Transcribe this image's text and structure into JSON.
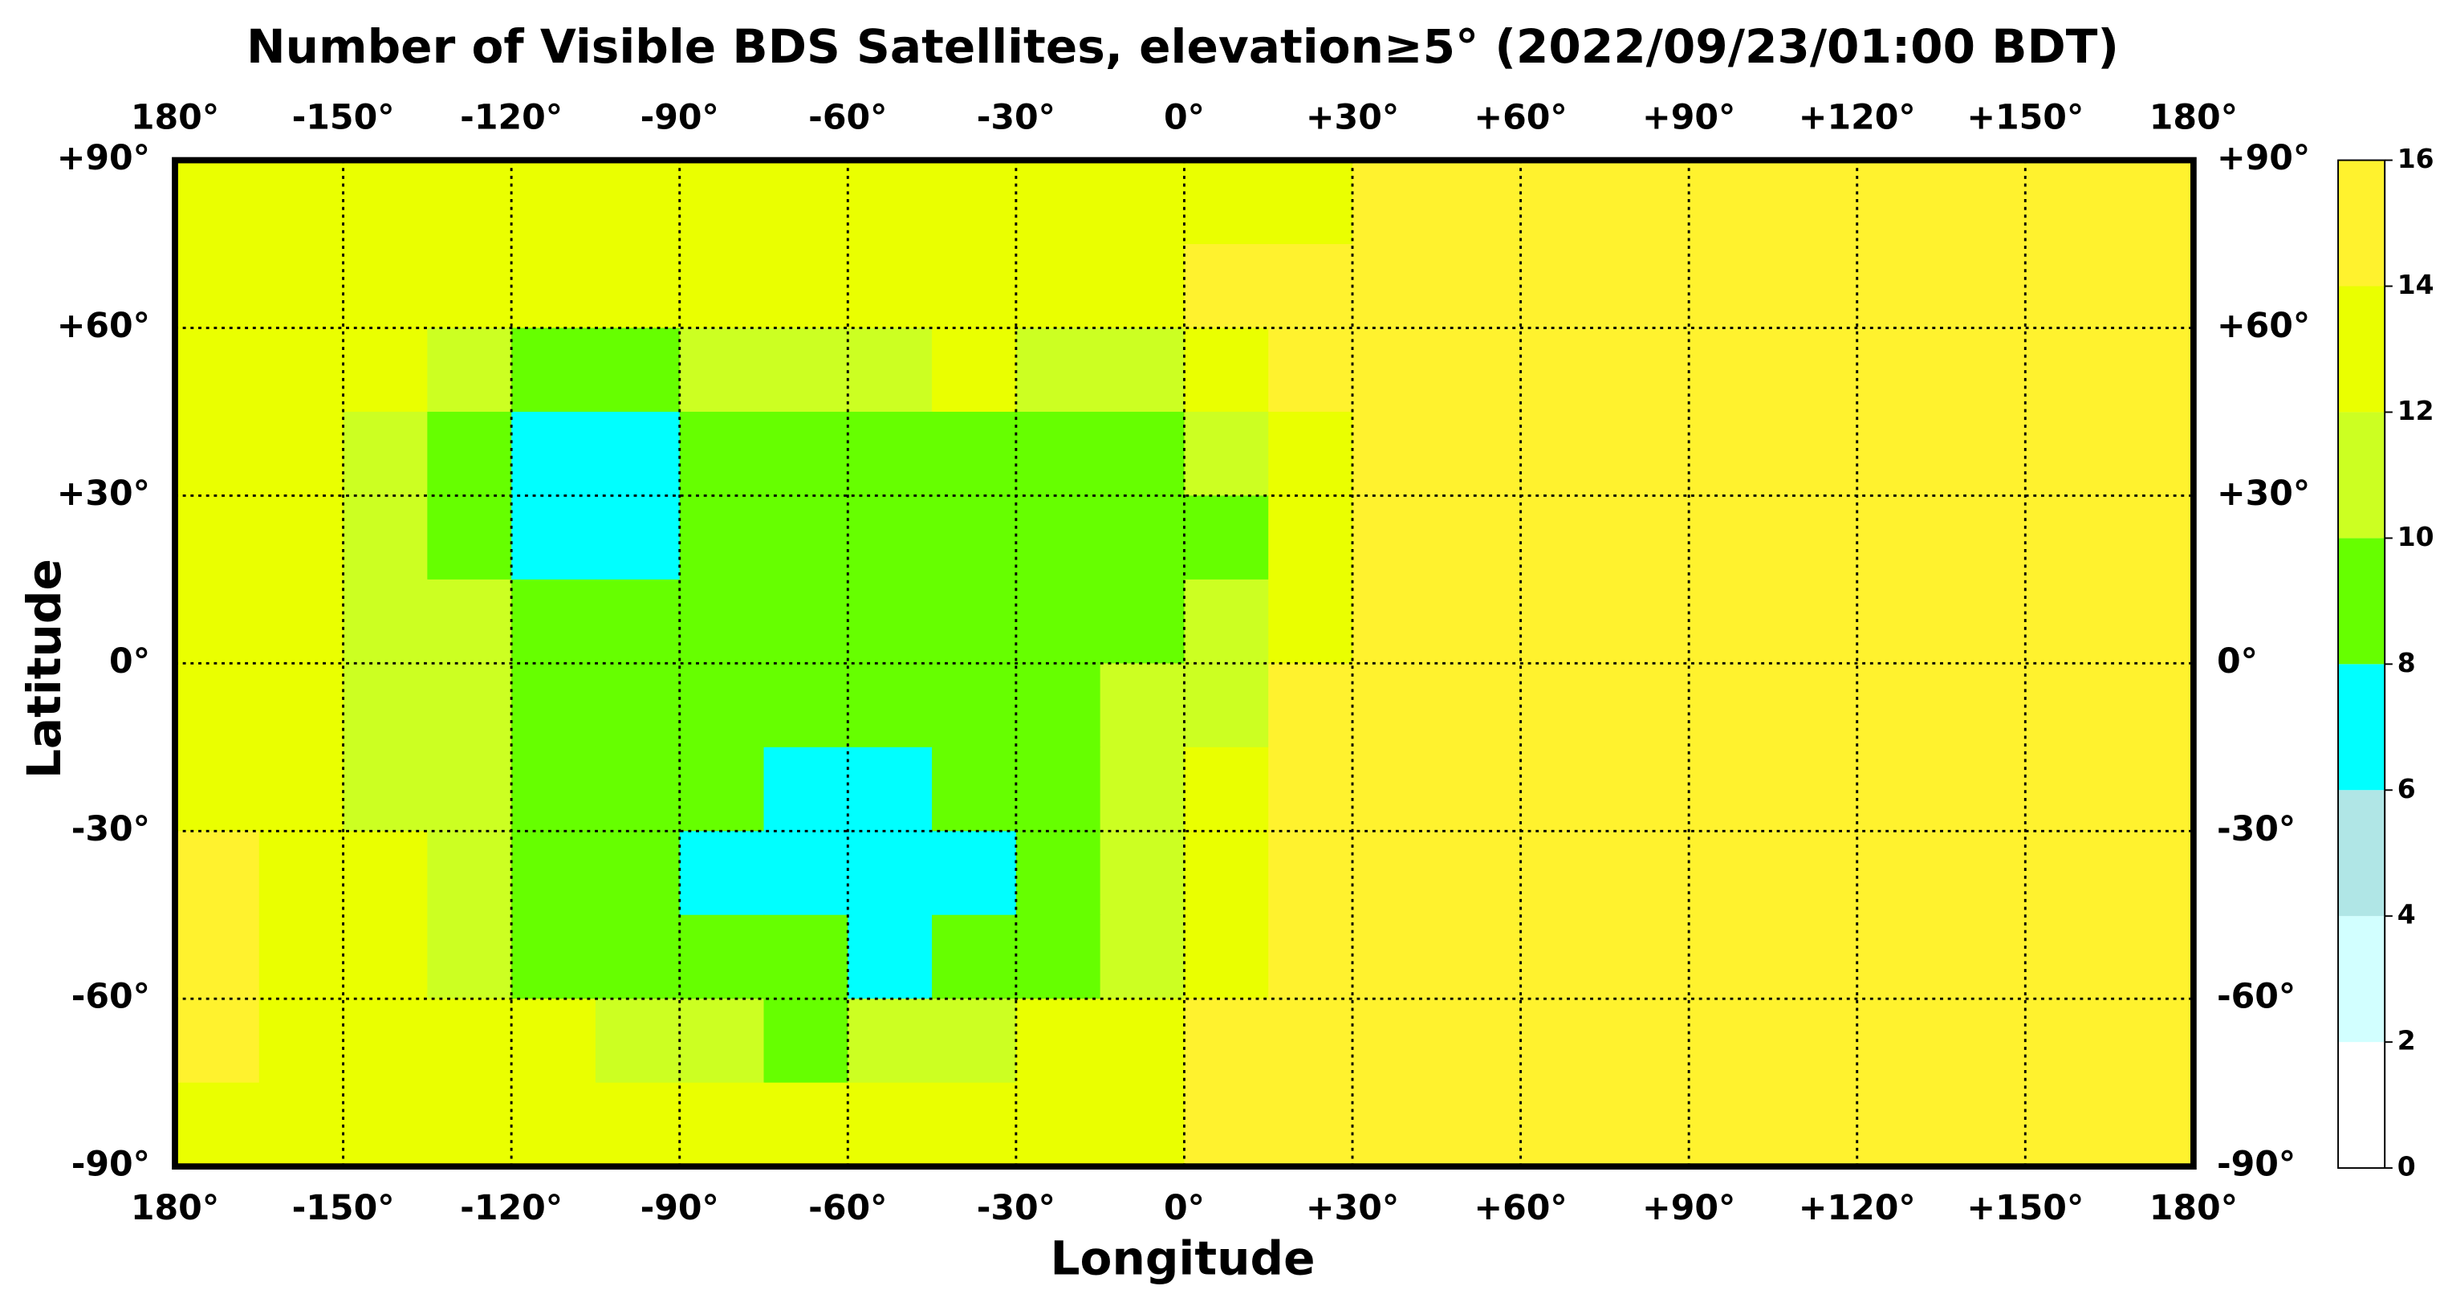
{
  "chart_data": {
    "type": "heatmap",
    "title": "Number of Visible BDS Satellites, elevation≥5° (2022/09/23/01:00 BDT)",
    "xlabel": "Longitude",
    "ylabel": "Latitude",
    "x": [
      -172.5,
      -157.5,
      -142.5,
      -127.5,
      -112.5,
      -97.5,
      -82.5,
      -67.5,
      -52.5,
      -37.5,
      -22.5,
      -7.5,
      7.5,
      22.5,
      37.5,
      52.5,
      67.5,
      82.5,
      97.5,
      112.5,
      127.5,
      142.5,
      157.5,
      172.5
    ],
    "y": [
      82.5,
      67.5,
      52.5,
      37.5,
      22.5,
      7.5,
      -7.5,
      -22.5,
      -37.5,
      -52.5,
      -67.5,
      -82.5
    ],
    "values": [
      [
        13,
        13,
        13,
        13,
        13,
        13,
        13,
        13,
        13,
        13,
        13,
        13,
        13,
        13,
        15,
        15,
        15,
        15,
        15,
        15,
        15,
        15,
        15,
        15
      ],
      [
        13,
        13,
        13,
        13,
        13,
        13,
        13,
        13,
        13,
        13,
        13,
        13,
        15,
        15,
        15,
        15,
        15,
        15,
        15,
        15,
        15,
        15,
        15,
        15
      ],
      [
        13,
        13,
        13,
        11,
        9,
        9,
        11,
        11,
        11,
        13,
        11,
        11,
        13,
        15,
        15,
        15,
        15,
        15,
        15,
        15,
        15,
        15,
        15,
        15
      ],
      [
        13,
        13,
        11,
        9,
        7,
        7,
        9,
        9,
        9,
        9,
        9,
        9,
        11,
        13,
        15,
        15,
        15,
        15,
        15,
        15,
        15,
        15,
        15,
        15
      ],
      [
        13,
        13,
        11,
        9,
        7,
        7,
        9,
        9,
        9,
        9,
        9,
        9,
        9,
        13,
        15,
        15,
        15,
        15,
        15,
        15,
        15,
        15,
        15,
        15
      ],
      [
        13,
        13,
        11,
        11,
        9,
        9,
        9,
        9,
        9,
        9,
        9,
        9,
        11,
        13,
        15,
        15,
        15,
        15,
        15,
        15,
        15,
        15,
        15,
        15
      ],
      [
        13,
        13,
        11,
        11,
        9,
        9,
        9,
        9,
        9,
        9,
        9,
        11,
        11,
        15,
        15,
        15,
        15,
        15,
        15,
        15,
        15,
        15,
        15,
        15
      ],
      [
        13,
        13,
        11,
        11,
        9,
        9,
        9,
        7,
        7,
        9,
        9,
        11,
        13,
        15,
        15,
        15,
        15,
        15,
        15,
        15,
        15,
        15,
        15,
        15
      ],
      [
        15,
        13,
        13,
        11,
        9,
        9,
        7,
        7,
        7,
        7,
        9,
        11,
        13,
        15,
        15,
        15,
        15,
        15,
        15,
        15,
        15,
        15,
        15,
        15
      ],
      [
        15,
        13,
        13,
        11,
        9,
        9,
        9,
        9,
        7,
        9,
        9,
        11,
        13,
        15,
        15,
        15,
        15,
        15,
        15,
        15,
        15,
        15,
        15,
        15
      ],
      [
        15,
        13,
        13,
        13,
        13,
        11,
        11,
        9,
        11,
        11,
        13,
        13,
        15,
        15,
        15,
        15,
        15,
        15,
        15,
        15,
        15,
        15,
        15,
        15
      ],
      [
        13,
        13,
        13,
        13,
        13,
        13,
        13,
        13,
        13,
        13,
        13,
        13,
        15,
        15,
        15,
        15,
        15,
        15,
        15,
        15,
        15,
        15,
        15,
        15
      ]
    ],
    "xlim": [
      -180,
      180
    ],
    "ylim": [
      -90,
      90
    ],
    "xticks": [
      {
        "value": -180,
        "label": "180°"
      },
      {
        "value": -150,
        "label": "-150°"
      },
      {
        "value": -120,
        "label": "-120°"
      },
      {
        "value": -90,
        "label": "-90°"
      },
      {
        "value": -60,
        "label": "-60°"
      },
      {
        "value": -30,
        "label": "-30°"
      },
      {
        "value": 0,
        "label": "0°"
      },
      {
        "value": 30,
        "label": "+30°"
      },
      {
        "value": 60,
        "label": "+60°"
      },
      {
        "value": 90,
        "label": "+90°"
      },
      {
        "value": 120,
        "label": "+120°"
      },
      {
        "value": 150,
        "label": "+150°"
      },
      {
        "value": 180,
        "label": "180°"
      }
    ],
    "yticks": [
      {
        "value": 90,
        "label": "+90°"
      },
      {
        "value": 60,
        "label": "+60°"
      },
      {
        "value": 30,
        "label": "+30°"
      },
      {
        "value": 0,
        "label": "0°"
      },
      {
        "value": -30,
        "label": "-30°"
      },
      {
        "value": -60,
        "label": "-60°"
      },
      {
        "value": -90,
        "label": "-90°"
      }
    ],
    "zlim": [
      0,
      16
    ],
    "zticks": [
      0,
      2,
      4,
      6,
      8,
      10,
      12,
      14,
      16
    ],
    "colors": [
      "#ffffff",
      "#d2ffff",
      "#b0e6e6",
      "#00ffff",
      "#66ff00",
      "#ccff22",
      "#eaff00",
      "#fff22e"
    ],
    "grid": true
  }
}
